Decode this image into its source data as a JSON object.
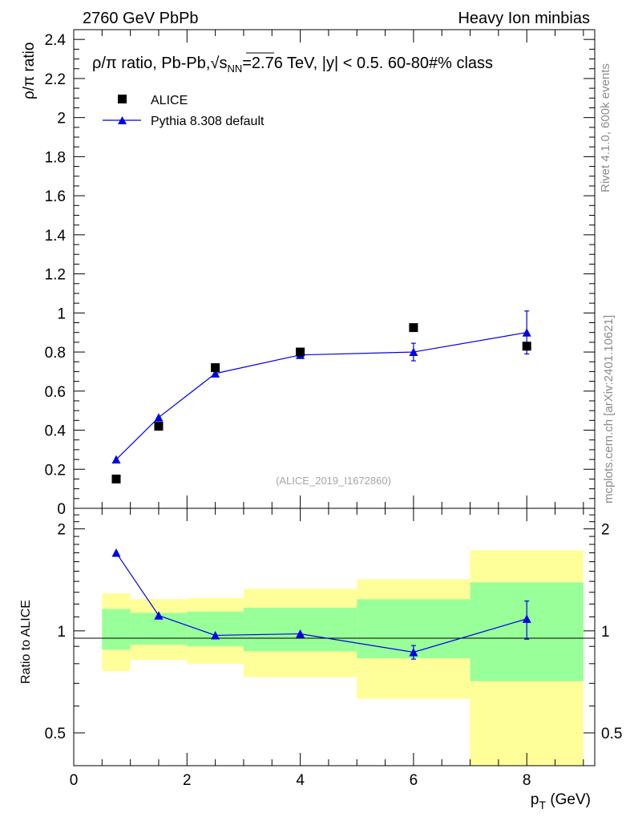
{
  "header": {
    "left": "2760 GeV PbPb",
    "right": "Heavy Ion minbias"
  },
  "side_labels": {
    "rivet": "Rivet 4.1.0,  600k events",
    "mcplots": "mcplots.cern.ch [arXiv:2401.10621]"
  },
  "colors": {
    "data": "#000000",
    "mc": "#0000e6",
    "band_inner": "#99ff99",
    "band_outer": "#ffff99"
  },
  "chart_data": [
    {
      "type": "scatter",
      "title_parts": {
        "pre": "ρ/π ratio, Pb-Pb,",
        "sqrt": "√",
        "s": "s",
        "nn": "NN",
        "post": "=2.76 TeV, |y| < 0.5. 60-80#% class"
      },
      "ylabel": "ρ/π ratio",
      "xlim": [
        0,
        9.2
      ],
      "ylim": [
        0,
        2.45
      ],
      "yticks": [
        0,
        0.2,
        0.4,
        0.6,
        0.8,
        1,
        1.2,
        1.4,
        1.6,
        1.8,
        2,
        2.2,
        2.4
      ],
      "ytick_labels": [
        "0",
        "0.2",
        "0.4",
        "0.6",
        "0.8",
        "1",
        "1.2",
        "1.4",
        "1.6",
        "1.8",
        "2",
        "2.2",
        "2.4"
      ],
      "series": [
        {
          "name": "ALICE",
          "marker": "square",
          "x": [
            0.75,
            1.5,
            2.5,
            4.0,
            6.0,
            8.0
          ],
          "y": [
            0.15,
            0.42,
            0.72,
            0.8,
            0.925,
            0.83
          ]
        },
        {
          "name": "Pythia 8.308 default",
          "marker": "triangle",
          "x": [
            0.75,
            1.5,
            2.5,
            4.0,
            6.0,
            8.0
          ],
          "y": [
            0.25,
            0.465,
            0.69,
            0.785,
            0.8,
            0.9
          ],
          "yerr": [
            0.005,
            0.005,
            0.01,
            0.012,
            0.045,
            0.11
          ]
        }
      ],
      "watermark": "(ALICE_2019_I1672860)"
    },
    {
      "type": "scatter",
      "ylabel": "Ratio to ALICE",
      "xlabel_main": "p",
      "xlabel_sub": "T",
      "xlabel_unit": " (GeV)",
      "xlim": [
        0,
        9.2
      ],
      "ylim": [
        0.4,
        2.3
      ],
      "ylog": true,
      "xticks": [
        0,
        2,
        4,
        6,
        8
      ],
      "xtick_labels": [
        "0",
        "2",
        "4",
        "6",
        "8"
      ],
      "yticks": [
        0.5,
        1,
        2
      ],
      "ytick_labels": [
        "0.5",
        "1",
        "2"
      ],
      "bands": [
        {
          "xlo": 0.5,
          "xhi": 1.0,
          "inner": [
            0.88,
            1.16
          ],
          "outer": [
            0.76,
            1.29
          ]
        },
        {
          "xlo": 1.0,
          "xhi": 2.0,
          "inner": [
            0.91,
            1.13
          ],
          "outer": [
            0.82,
            1.24
          ]
        },
        {
          "xlo": 2.0,
          "xhi": 3.0,
          "inner": [
            0.9,
            1.14
          ],
          "outer": [
            0.8,
            1.25
          ]
        },
        {
          "xlo": 3.0,
          "xhi": 5.0,
          "inner": [
            0.87,
            1.17
          ],
          "outer": [
            0.73,
            1.33
          ]
        },
        {
          "xlo": 5.0,
          "xhi": 7.0,
          "inner": [
            0.83,
            1.24
          ],
          "outer": [
            0.63,
            1.42
          ]
        },
        {
          "xlo": 7.0,
          "xhi": 9.0,
          "inner": [
            0.71,
            1.39
          ],
          "outer": [
            0.4,
            1.73
          ]
        }
      ],
      "series": [
        {
          "name": "Pythia 8.308 default / ALICE",
          "x": [
            0.75,
            1.5,
            2.5,
            4.0,
            6.0,
            8.0
          ],
          "y": [
            1.7,
            1.11,
            0.97,
            0.98,
            0.865,
            1.085
          ],
          "yerr": [
            0.0,
            0.0,
            0.0,
            0.0,
            0.04,
            0.14
          ]
        }
      ]
    }
  ]
}
